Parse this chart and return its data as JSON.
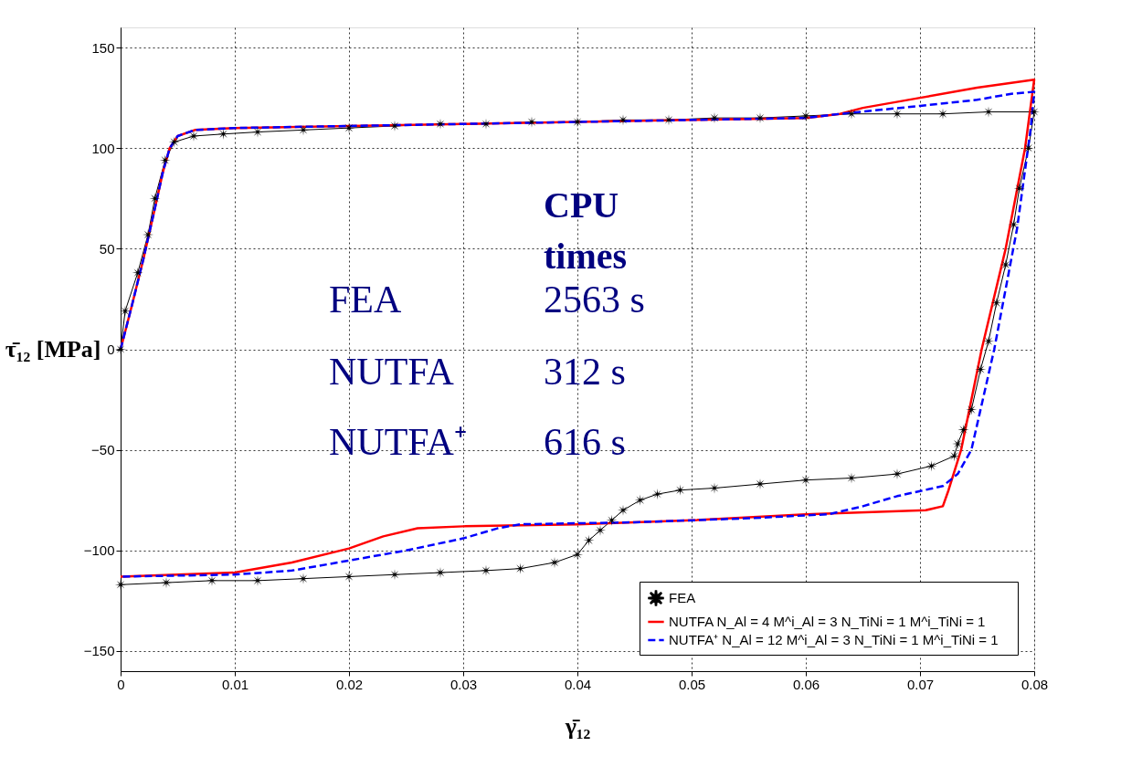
{
  "chart_data": {
    "type": "line",
    "xlabel": "γ̄₁₂",
    "ylabel": "τ̄₁₂ [MPa]",
    "xlim": [
      0,
      0.08
    ],
    "xticks": [
      0,
      0.01,
      0.02,
      0.03,
      0.04,
      0.05,
      0.06,
      0.07,
      0.08
    ],
    "ylim": [
      -160,
      160
    ],
    "yticks": [
      -150,
      -100,
      -50,
      0,
      50,
      100,
      150
    ],
    "grid": true,
    "legend": "bottom right",
    "annotations": [
      "CPU times",
      "FEA",
      "2563 s",
      "NUTFA",
      "312 s",
      "NUTFA⁺",
      "616 s"
    ],
    "series": [
      {
        "name": "FEA",
        "color": "#000000",
        "marker": "star",
        "line_style": "solid",
        "x": [
          0,
          0.0004,
          0.0015,
          0.0024,
          0.003,
          0.0039,
          0.0047,
          0.0064,
          0.009,
          0.012,
          0.016,
          0.02,
          0.024,
          0.028,
          0.032,
          0.036,
          0.04,
          0.044,
          0.048,
          0.052,
          0.056,
          0.06,
          0.064,
          0.068,
          0.072,
          0.076,
          0.08,
          0.0795,
          0.0787,
          0.0782,
          0.0775,
          0.0767,
          0.076,
          0.0753,
          0.0745,
          0.0738,
          0.0733,
          0.073,
          0.071,
          0.068,
          0.064,
          0.06,
          0.056,
          0.052,
          0.049,
          0.047,
          0.0455,
          0.044,
          0.043,
          0.042,
          0.041,
          0.04,
          0.038,
          0.035,
          0.032,
          0.028,
          0.024,
          0.02,
          0.016,
          0.012,
          0.008,
          0.004,
          0
        ],
        "values": [
          0,
          19,
          38,
          57,
          75,
          94,
          103,
          106,
          107,
          108,
          109,
          110,
          111,
          112,
          112,
          113,
          113,
          114,
          114,
          115,
          115,
          116,
          117,
          117,
          117,
          118,
          118,
          100,
          80,
          62,
          42,
          23,
          4,
          -10,
          -30,
          -40,
          -47,
          -53,
          -58,
          -62,
          -64,
          -65,
          -67,
          -69,
          -70,
          -72,
          -75,
          -80,
          -85,
          -90,
          -95,
          -102,
          -106,
          -109,
          -110,
          -111,
          -112,
          -113,
          -114,
          -115,
          -115,
          -116,
          -117
        ]
      },
      {
        "name": "NUTFA   N_Al = 4  M^i_Al = 3  N_TiNi = 1  M^i_TiNi = 1",
        "color": "#ff0000",
        "line_style": "solid",
        "x": [
          0,
          0.001,
          0.002,
          0.003,
          0.0037,
          0.0043,
          0.005,
          0.0065,
          0.01,
          0.02,
          0.03,
          0.04,
          0.05,
          0.06,
          0.063,
          0.065,
          0.07,
          0.075,
          0.08,
          0.0792,
          0.0775,
          0.0754,
          0.0736,
          0.0725,
          0.072,
          0.0705,
          0.06,
          0.05,
          0.04,
          0.03,
          0.026,
          0.023,
          0.02,
          0.015,
          0.01,
          0.005,
          0
        ],
        "values": [
          0,
          22,
          45,
          70,
          88,
          100,
          106,
          109,
          110,
          111,
          112,
          113,
          114,
          115,
          117,
          120,
          125,
          130,
          134,
          100,
          50,
          0,
          -50,
          -70,
          -78,
          -80,
          -82,
          -85,
          -87,
          -88,
          -89,
          -93,
          -99,
          -106,
          -111,
          -112,
          -113
        ]
      },
      {
        "name": "NUTFA⁺ N_Al = 12  M^i_Al = 3  N_TiNi = 1  M^i_TiNi = 1",
        "color": "#0000ff",
        "line_style": "dashed",
        "x": [
          0,
          0.001,
          0.002,
          0.003,
          0.0037,
          0.0043,
          0.005,
          0.0065,
          0.01,
          0.02,
          0.03,
          0.04,
          0.05,
          0.06,
          0.063,
          0.07,
          0.075,
          0.078,
          0.08,
          0.0797,
          0.0785,
          0.0765,
          0.0745,
          0.0733,
          0.072,
          0.068,
          0.065,
          0.062,
          0.055,
          0.045,
          0.035,
          0.033,
          0.03,
          0.025,
          0.02,
          0.015,
          0.01,
          0
        ],
        "values": [
          0,
          22,
          45,
          70,
          88,
          100,
          106,
          109,
          110,
          111,
          112,
          113,
          114,
          115,
          117,
          121,
          124,
          127,
          128,
          110,
          60,
          0,
          -50,
          -62,
          -68,
          -73,
          -78,
          -82,
          -84,
          -86,
          -87,
          -89,
          -94,
          -100,
          -105,
          -110,
          -112,
          -113
        ]
      }
    ]
  }
}
